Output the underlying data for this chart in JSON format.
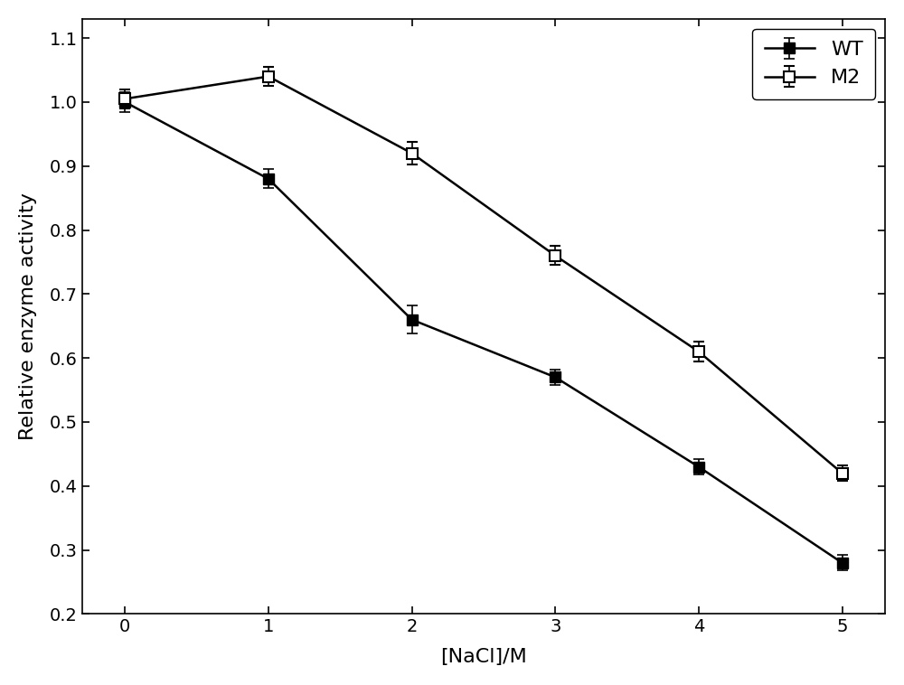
{
  "x": [
    0,
    1,
    2,
    3,
    4,
    5
  ],
  "wt_y": [
    1.0,
    0.88,
    0.66,
    0.57,
    0.43,
    0.28
  ],
  "wt_yerr": [
    0.015,
    0.015,
    0.022,
    0.012,
    0.012,
    0.012
  ],
  "m2_y": [
    1.005,
    1.04,
    0.92,
    0.76,
    0.61,
    0.42
  ],
  "m2_yerr": [
    0.015,
    0.015,
    0.018,
    0.015,
    0.015,
    0.012
  ],
  "wt_color": "#000000",
  "m2_color": "#000000",
  "xlabel": "[NaCl]/M",
  "ylabel": "Relative enzyme activity",
  "xlim": [
    -0.3,
    5.3
  ],
  "ylim": [
    0.2,
    1.13
  ],
  "yticks": [
    0.2,
    0.3,
    0.4,
    0.5,
    0.6,
    0.7,
    0.8,
    0.9,
    1.0,
    1.1
  ],
  "xticks": [
    0,
    1,
    2,
    3,
    4,
    5
  ],
  "wt_label": "WT",
  "m2_label": "M2",
  "legend_loc": "upper right",
  "marker_size": 8,
  "linewidth": 1.8,
  "capsize": 4,
  "tick_fontsize": 14,
  "label_fontsize": 16
}
